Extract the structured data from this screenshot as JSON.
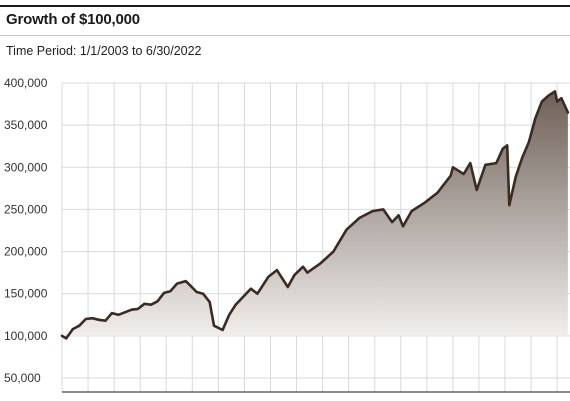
{
  "header": {
    "title": "Growth of $100,000",
    "subtitle": "Time Period: 1/1/2003 to 6/30/2022"
  },
  "colors": {
    "line": "#3d2b22",
    "area_top": "#6e6058",
    "area_bottom": "#f2f0ee",
    "grid": "#d9d9d9"
  },
  "chart_data": {
    "type": "area",
    "title": "Growth of $100,000",
    "x_range": [
      "2003-01-01",
      "2022-06-30"
    ],
    "ylim": [
      50000,
      400000
    ],
    "y_ticks": [
      400000,
      350000,
      300000,
      250000,
      200000,
      150000,
      100000,
      50000
    ],
    "y_tick_labels": [
      "400,000",
      "350,000",
      "300,000",
      "250,000",
      "200,000",
      "150,000",
      "100,000",
      "50,000"
    ],
    "grid": true,
    "series": [
      {
        "x": [
          "2003-01",
          "2003-03",
          "2003-06",
          "2003-09",
          "2003-12",
          "2004-03",
          "2004-06",
          "2004-09",
          "2004-12",
          "2005-03",
          "2005-06",
          "2005-09",
          "2005-12",
          "2006-03",
          "2006-06",
          "2006-09",
          "2006-12",
          "2007-03",
          "2007-06",
          "2007-10",
          "2007-12",
          "2008-03",
          "2008-06",
          "2008-09",
          "2008-11",
          "2009-03",
          "2009-06",
          "2009-09",
          "2009-12",
          "2010-04",
          "2010-07",
          "2010-12",
          "2011-04",
          "2011-09",
          "2011-12",
          "2012-04",
          "2012-06",
          "2012-12",
          "2013-06",
          "2013-12",
          "2014-06",
          "2014-12",
          "2015-05",
          "2015-09",
          "2015-12",
          "2016-02",
          "2016-06",
          "2016-12",
          "2017-06",
          "2017-12",
          "2018-01",
          "2018-06",
          "2018-09",
          "2018-12",
          "2019-04",
          "2019-09",
          "2019-12",
          "2020-02",
          "2020-03",
          "2020-06",
          "2020-09",
          "2020-12",
          "2021-03",
          "2021-06",
          "2021-09",
          "2021-12",
          "2022-01",
          "2022-03",
          "2022-06"
        ],
        "values": [
          100000,
          97000,
          108000,
          112000,
          120000,
          121000,
          119000,
          118000,
          127000,
          125000,
          128000,
          131000,
          132000,
          138000,
          137000,
          141000,
          151000,
          153000,
          162000,
          165000,
          160000,
          152000,
          150000,
          140000,
          112000,
          107000,
          125000,
          137000,
          145000,
          156000,
          150000,
          170000,
          178000,
          158000,
          172000,
          182000,
          175000,
          186000,
          200000,
          226000,
          240000,
          248000,
          250000,
          235000,
          243000,
          230000,
          248000,
          258000,
          270000,
          290000,
          300000,
          292000,
          305000,
          273000,
          303000,
          305000,
          322000,
          326000,
          255000,
          289000,
          312000,
          330000,
          358000,
          378000,
          385000,
          390000,
          378000,
          382000,
          365000
        ]
      }
    ]
  }
}
